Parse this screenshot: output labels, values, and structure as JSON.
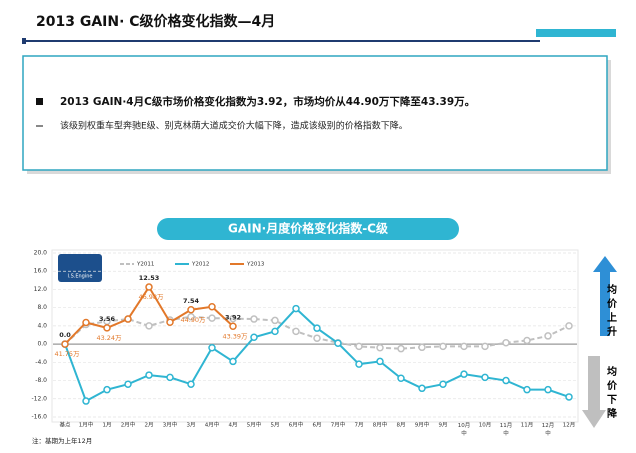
{
  "header": {
    "title": "2013 GAIN· C级价格变化指数—4月"
  },
  "summary": {
    "bullet": "2013 GAIN·4月C级市场价格变化指数为3.92，市场均价从44.90万下降至43.39万。",
    "detail": "该级别权重车型奔驰E级、别克林荫大道成交价大幅下降，造成该级别的价格指数下降。"
  },
  "side": {
    "up": "均价上升",
    "down": "均价下降"
  },
  "note": "注：基期为上年12月",
  "logo": "I.S.Engine",
  "chart_data": {
    "type": "line",
    "title": "GAIN·月度价格变化指数-C级",
    "categories": [
      "基点",
      "1月中",
      "1月",
      "2月中",
      "2月",
      "3月中",
      "3月",
      "4月中",
      "4月",
      "5月中",
      "5月",
      "6月中",
      "6月",
      "7月中",
      "7月",
      "8月中",
      "8月",
      "9月中",
      "9月",
      "10月中",
      "10月",
      "11月中",
      "11月",
      "12月中",
      "12月"
    ],
    "ylim": [
      -16,
      20
    ],
    "yticks": [
      {
        "value": 20,
        "label": "20.0"
      },
      {
        "value": 16,
        "label": "16.0"
      },
      {
        "value": 12,
        "label": "12.0"
      },
      {
        "value": 8,
        "label": "8.0"
      },
      {
        "value": 4,
        "label": "4.0"
      },
      {
        "value": 0,
        "label": "0.0"
      },
      {
        "value": -4,
        "label": "-4.0"
      },
      {
        "value": -8,
        "label": "-8.0"
      },
      {
        "value": -12,
        "label": "-12.0"
      },
      {
        "value": -16,
        "label": "-16.0"
      }
    ],
    "grid": true,
    "series": [
      {
        "name": "Y2011",
        "color": "#c0c0c0",
        "dashed": true,
        "values": [
          0,
          4.3,
          5,
          5.5,
          4,
          5.3,
          6,
          5.7,
          5.6,
          5.5,
          5.2,
          2.8,
          1.3,
          0.3,
          -0.5,
          -0.8,
          -1,
          -0.7,
          -0.5,
          -0.5,
          -0.5,
          0.3,
          0.8,
          1.8,
          4
        ]
      },
      {
        "name": "Y2012",
        "color": "#2fb5d2",
        "values": [
          0,
          -12.5,
          -10,
          -8.8,
          -6.8,
          -7.3,
          -8.8,
          -0.8,
          -3.8,
          1.5,
          2.8,
          7.8,
          3.5,
          0.2,
          -4.4,
          -3.8,
          -7.5,
          -9.7,
          -8.8,
          -6.6,
          -7.3,
          -8,
          -10,
          -10,
          -11.6
        ]
      },
      {
        "name": "Y2013",
        "color": "#e2782a",
        "values": [
          0,
          4.75,
          3.56,
          5.5,
          12.53,
          4.8,
          7.54,
          8.2,
          3.92,
          null,
          null,
          null,
          null,
          null,
          null,
          null,
          null,
          null,
          null,
          null,
          null,
          null,
          null,
          null,
          null
        ],
        "value_labels": [
          "0.0",
          null,
          "3.56",
          null,
          "12.53",
          null,
          "7.54",
          null,
          "3.92",
          null,
          null,
          null,
          null,
          null,
          null,
          null,
          null,
          null,
          null,
          null,
          null,
          null,
          null,
          null,
          null
        ],
        "price_labels": [
          "41.75万",
          null,
          "43.24万",
          null,
          "46.98万",
          null,
          "44.90万",
          null,
          "43.39万",
          null,
          null,
          null,
          null,
          null,
          null,
          null,
          null,
          null,
          null,
          null,
          null,
          null,
          null,
          null,
          null
        ]
      }
    ]
  }
}
